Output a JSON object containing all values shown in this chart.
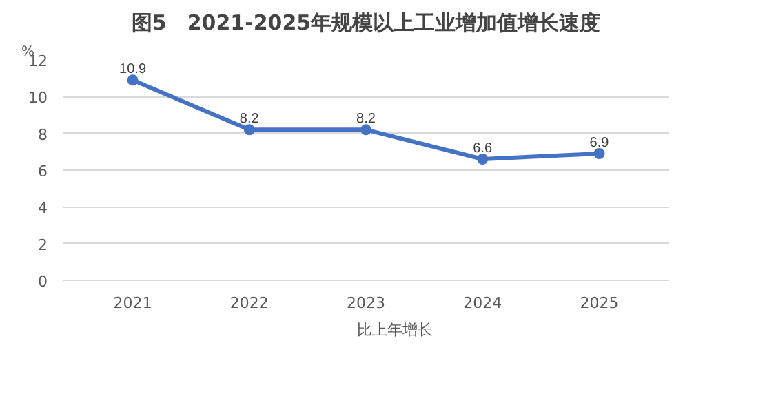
{
  "chart_data": {
    "type": "line",
    "title": "图5　2021-2025年规模以上工业增加值增长速度",
    "ylabel": "%",
    "categories": [
      "2021",
      "2022",
      "2023",
      "2024",
      "2025"
    ],
    "series": [
      {
        "name": "比上年增长",
        "color": "#4472c4",
        "values": [
          10.9,
          8.2,
          8.2,
          6.6,
          6.9
        ]
      }
    ],
    "ylim": [
      0,
      12
    ],
    "yticks": [
      0,
      2,
      4,
      6,
      8,
      10,
      12
    ],
    "grid": "y",
    "legend": "bottom",
    "marker": "circle",
    "line_style": "solid",
    "data_labels": true
  }
}
